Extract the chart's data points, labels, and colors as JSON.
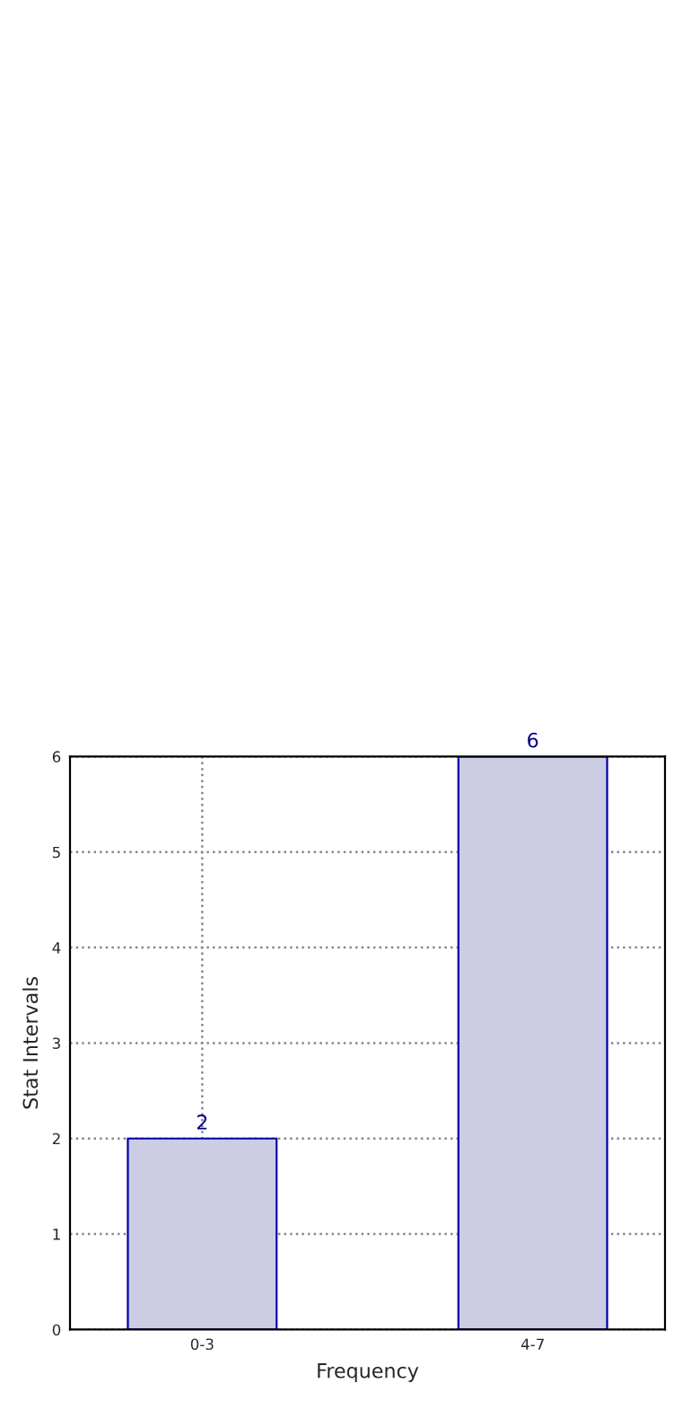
{
  "chart_data": {
    "type": "bar",
    "xlabel": "Frequency",
    "ylabel": "Stat Intervals",
    "categories": [
      "0-3",
      "4-7"
    ],
    "values": [
      2,
      6
    ],
    "color": "#ccccE5",
    "ylim": [
      0,
      6
    ],
    "yticks": [
      0,
      1,
      2,
      3,
      4,
      5,
      6
    ],
    "grid": true,
    "data_labels": true
  }
}
